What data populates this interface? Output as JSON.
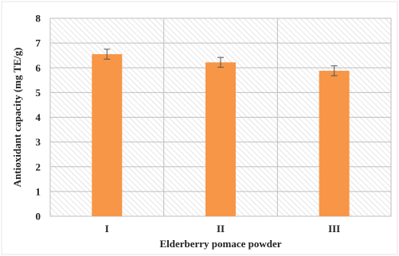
{
  "chart_data": {
    "type": "bar",
    "categories": [
      "I",
      "II",
      "III"
    ],
    "values": [
      6.55,
      6.22,
      5.88
    ],
    "errors": [
      0.2,
      0.2,
      0.2
    ],
    "title": "",
    "xlabel": "Elderberry pomace powder",
    "ylabel": "Antioxidant capacity (mg TE/g)",
    "ylim": [
      0,
      8
    ],
    "yticks": [
      0,
      1,
      2,
      3,
      4,
      5,
      6,
      7,
      8
    ],
    "grid": true,
    "legend": "none",
    "colors": {
      "bar": "#f79646",
      "bar_edge": "#f79646",
      "error_bar": "#555555",
      "grid": "#bfbfbf",
      "hatch": "#d0d0d0",
      "frame": "#bfbfbf"
    }
  }
}
